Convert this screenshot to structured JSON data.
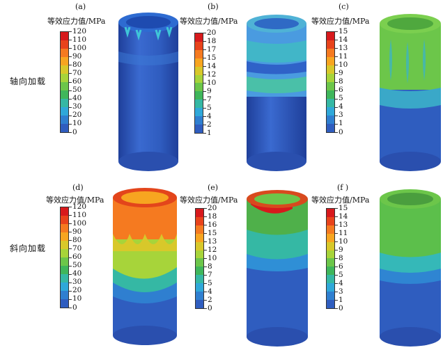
{
  "rows": [
    {
      "label": "轴向加载"
    },
    {
      "label": "斜向加载"
    }
  ],
  "panels": [
    {
      "letter": "(a)",
      "title": "等效应力值/MPa",
      "ticks": [
        "120",
        "110",
        "100",
        "90",
        "80",
        "70",
        "60",
        "50",
        "40",
        "30",
        "20",
        "10",
        "0"
      ]
    },
    {
      "letter": "(b)",
      "title": "等效应力值/MPa",
      "ticks": [
        "20",
        "18",
        "17",
        "15",
        "14",
        "12",
        "10",
        "9",
        "7",
        "5",
        "4",
        "2",
        "1"
      ]
    },
    {
      "letter": "(c)",
      "title": "等效应力值/MPa",
      "ticks": [
        "15",
        "14",
        "13",
        "11",
        "10",
        "9",
        "8",
        "6",
        "5",
        "4",
        "3",
        "1",
        "0"
      ]
    },
    {
      "letter": "(d)",
      "title": "等效应力值/MPa",
      "ticks": [
        "120",
        "110",
        "100",
        "90",
        "80",
        "70",
        "60",
        "50",
        "40",
        "30",
        "20",
        "10",
        "0"
      ]
    },
    {
      "letter": "(e)",
      "title": "等效应力值/MPa",
      "ticks": [
        "20",
        "18",
        "16",
        "15",
        "13",
        "12",
        "10",
        "8",
        "7",
        "5",
        "4",
        "2",
        "0"
      ]
    },
    {
      "letter": "(f )",
      "title": "等效应力值/MPa",
      "ticks": [
        "15",
        "14",
        "13",
        "11",
        "10",
        "9",
        "8",
        "6",
        "5",
        "4",
        "3",
        "1",
        "0"
      ]
    }
  ],
  "colors": {
    "scale": [
      "#d7191c",
      "#e8431b",
      "#f57a20",
      "#f7a520",
      "#d8c82a",
      "#a7d43a",
      "#6cc64a",
      "#3fb65b",
      "#35b8a4",
      "#2fa8d9",
      "#2f7fd0",
      "#2f5dbf"
    ],
    "low": "#2f5dbf",
    "mid": "#2f7fd0",
    "cyan": "#35b8c8",
    "green": "#5cbf4b",
    "yellow": "#c8d23a",
    "orange": "#f08a22",
    "red": "#d7191c"
  }
}
